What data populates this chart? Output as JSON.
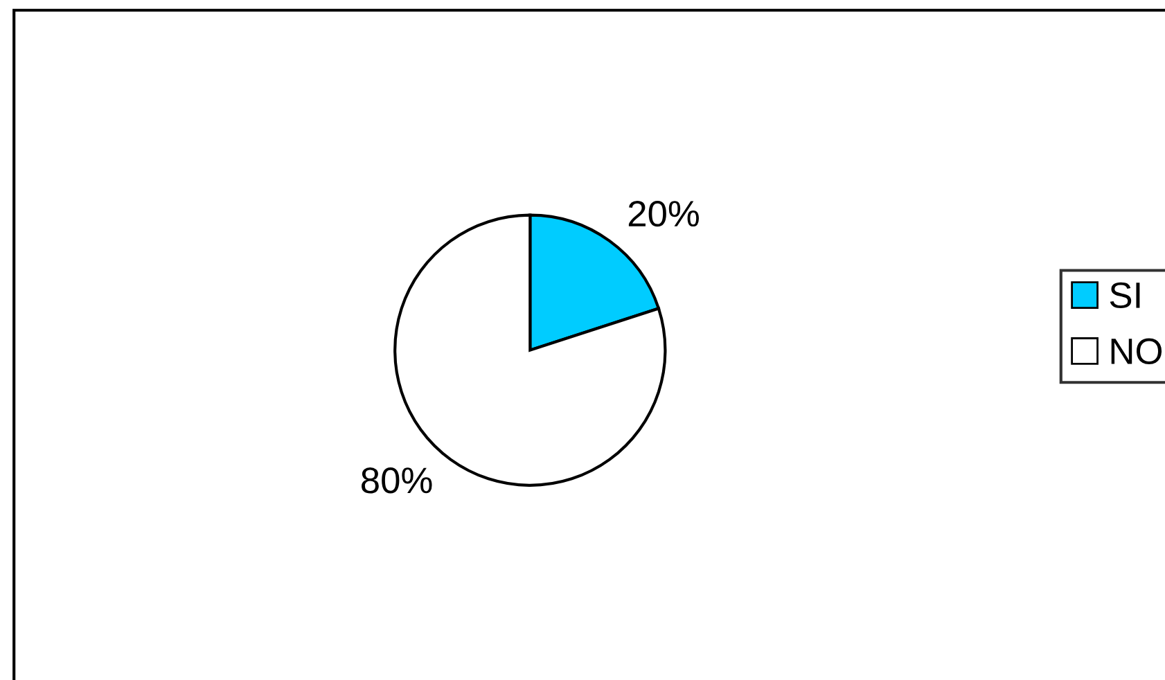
{
  "chart_data": {
    "type": "pie",
    "categories": [
      "SI",
      "NO"
    ],
    "values": [
      20,
      80
    ],
    "colors": [
      "#00ccff",
      "#ffffff"
    ],
    "value_labels": [
      "20%",
      "80%"
    ],
    "legend": "right"
  }
}
